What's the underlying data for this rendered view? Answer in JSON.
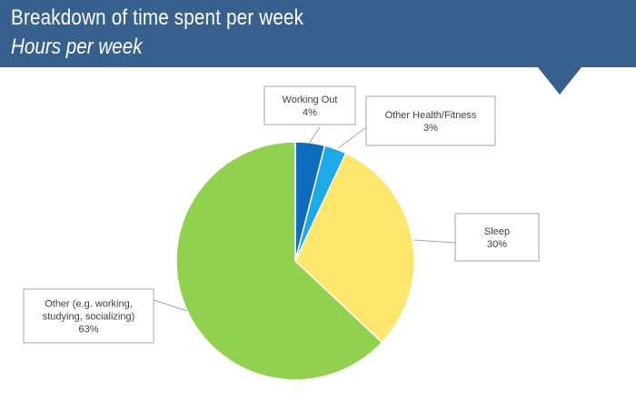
{
  "header": {
    "title": "Breakdown of time spent per week",
    "subtitle": "Hours per week"
  },
  "colors": {
    "header_bg": "#37608f",
    "callout_border": "#a6a6a6",
    "leader_line": "#a6a6a6"
  },
  "chart_data": {
    "type": "pie",
    "title": "Breakdown of time spent per week",
    "subtitle": "Hours per week",
    "slices": [
      {
        "name": "Working Out",
        "value": 4,
        "label": "4%",
        "color": "#0f6cbd"
      },
      {
        "name": "Other Health/Fitness",
        "value": 3,
        "label": "3%",
        "color": "#1ea9e8"
      },
      {
        "name": "Sleep",
        "value": 30,
        "label": "30%",
        "color": "#ffe66d"
      },
      {
        "name": "Other (e.g. working, studying, socializing)",
        "value": 63,
        "label": "63%",
        "color": "#92d050"
      }
    ],
    "start_angle_deg": 0,
    "direction": "clockwise",
    "legend": "none",
    "data_labels": "callouts"
  }
}
